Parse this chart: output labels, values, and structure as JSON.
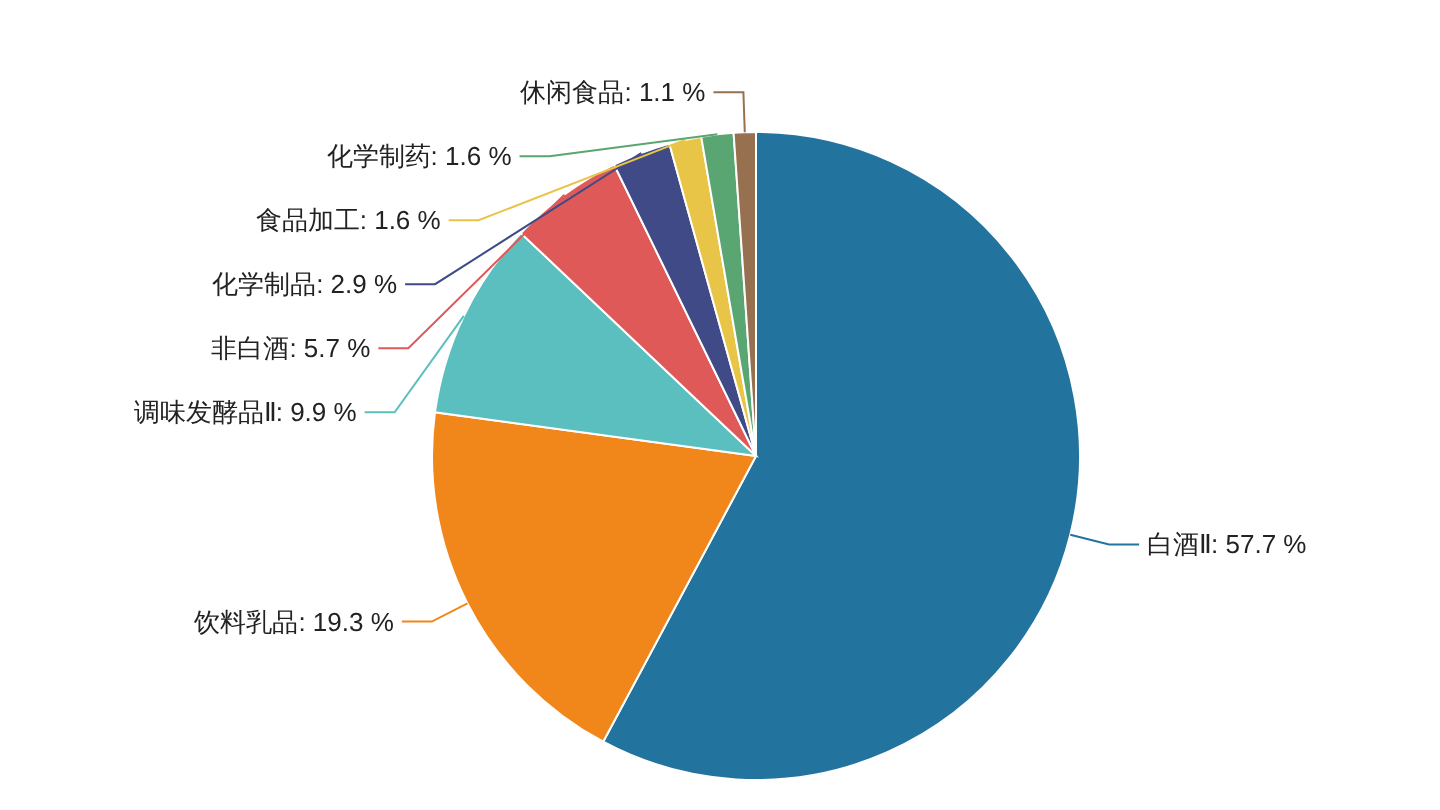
{
  "chart_data": {
    "type": "pie",
    "categories": [
      "白酒Ⅱ",
      "饮料乳品",
      "调味发酵品Ⅱ",
      "非白酒",
      "化学制品",
      "食品加工",
      "化学制药",
      "休闲食品"
    ],
    "values": [
      57.7,
      19.3,
      9.9,
      5.7,
      2.9,
      1.6,
      1.6,
      1.1
    ],
    "value_labels": [
      "57.7 %",
      "19.3 %",
      "9.9 %",
      "5.7 %",
      "2.9 %",
      "1.6 %",
      "1.6 %",
      "1.1 %"
    ],
    "colors": [
      "#23739f",
      "#f1861b",
      "#5cbfbf",
      "#e05959",
      "#3f4a86",
      "#e8c447",
      "#5aa672",
      "#97714f"
    ]
  }
}
